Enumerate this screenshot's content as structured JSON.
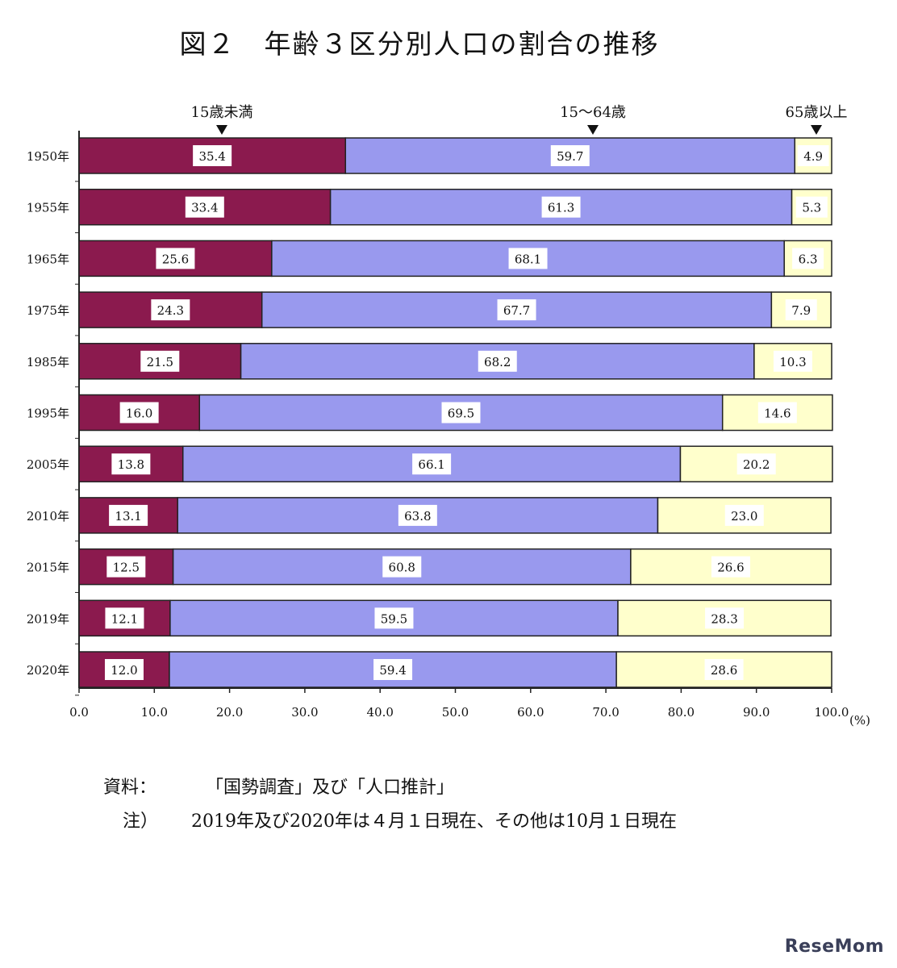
{
  "title": "図２　年齢３区分別人口の割合の推移",
  "chart_data": {
    "type": "bar",
    "orientation": "horizontal",
    "stacked": true,
    "categories": [
      "1950年",
      "1955年",
      "1965年",
      "1975年",
      "1985年",
      "1995年",
      "2005年",
      "2010年",
      "2015年",
      "2019年",
      "2020年"
    ],
    "series": [
      {
        "name": "15歳未満",
        "color": "#8b1a4e",
        "values": [
          35.4,
          33.4,
          25.6,
          24.3,
          21.5,
          16.0,
          13.8,
          13.1,
          12.5,
          12.1,
          12.0
        ]
      },
      {
        "name": "15～64歳",
        "color": "#9999ee",
        "values": [
          59.7,
          61.3,
          68.1,
          67.7,
          68.2,
          69.5,
          66.1,
          63.8,
          60.8,
          59.5,
          59.4
        ]
      },
      {
        "name": "65歳以上",
        "color": "#ffffcc",
        "values": [
          4.9,
          5.3,
          6.3,
          7.9,
          10.3,
          14.6,
          20.2,
          23.0,
          26.6,
          28.3,
          28.6
        ]
      }
    ],
    "x_ticks": [
      "0.0",
      "10.0",
      "20.0",
      "30.0",
      "40.0",
      "50.0",
      "60.0",
      "70.0",
      "80.0",
      "90.0",
      "100.0"
    ],
    "x_unit": "(%)",
    "xlim": [
      0,
      100
    ],
    "legend": "top, arrows"
  },
  "source_label": "資料：",
  "source_text": "「国勢調査」及び「人口推計」",
  "note_label": "注）",
  "note_text": "2019年及び2020年は４月１日現在、その他は10月１日現在",
  "watermark": "ReseMom"
}
